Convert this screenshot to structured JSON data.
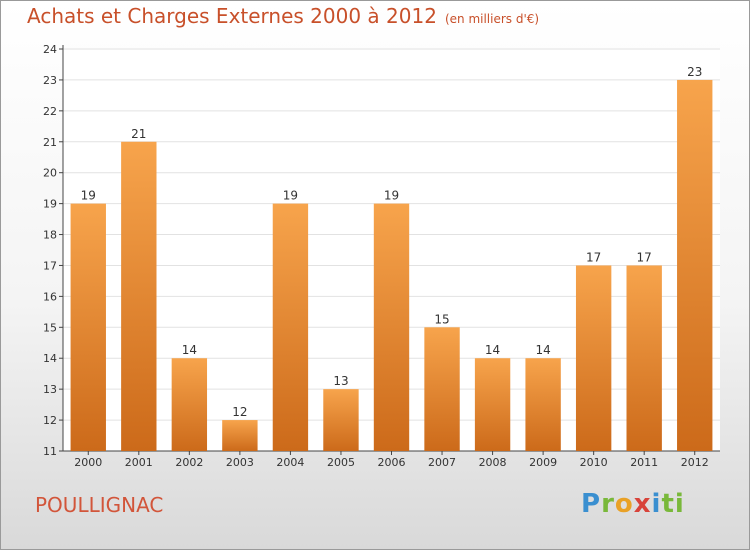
{
  "header": {
    "title": "Achats et Charges Externes 2000 à 2012",
    "unit": "(en milliers d'€)"
  },
  "footer": {
    "commune": "POULLIGNAC",
    "logo": [
      "P",
      "r",
      "o",
      "x",
      "i",
      "ti"
    ]
  },
  "colors": {
    "bar_top": "#f7a44c",
    "bar_bottom": "#cc6a1a",
    "grid": "#e2e2e2",
    "title": "#c8502a"
  },
  "chart_data": {
    "type": "bar",
    "title": "Achats et Charges Externes 2000 à 2012",
    "xlabel": "",
    "ylabel": "",
    "categories": [
      "2000",
      "2001",
      "2002",
      "2003",
      "2004",
      "2005",
      "2006",
      "2007",
      "2008",
      "2009",
      "2010",
      "2011",
      "2012"
    ],
    "values": [
      19,
      21,
      14,
      12,
      19,
      13,
      19,
      15,
      14,
      14,
      17,
      17,
      23
    ],
    "ylim": [
      11,
      24
    ],
    "yticks": [
      11,
      12,
      13,
      14,
      15,
      16,
      17,
      18,
      19,
      20,
      21,
      22,
      23,
      24
    ],
    "grid": true,
    "legend": "none"
  }
}
